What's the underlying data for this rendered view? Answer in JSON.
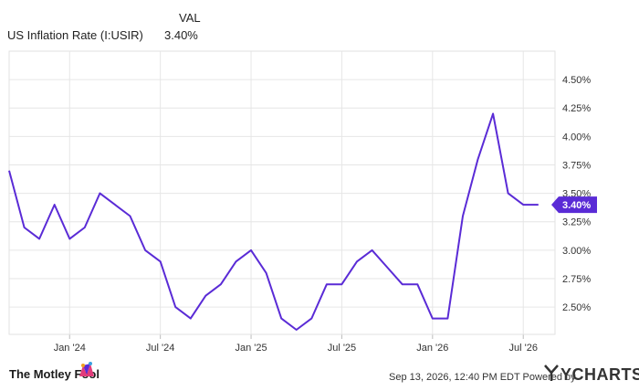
{
  "legend": {
    "value_header": "VAL",
    "series_name": "US Inflation Rate (I:USIR)",
    "series_value": "3.40%"
  },
  "chart_data": {
    "type": "line",
    "series": [
      {
        "name": "US Inflation Rate (I:USIR)",
        "color": "#5a2bd6",
        "x": [
          "2023-09",
          "2023-10",
          "2023-11",
          "2023-12",
          "2024-01",
          "2024-02",
          "2024-03",
          "2024-04",
          "2024-05",
          "2024-06",
          "2024-07",
          "2024-08",
          "2024-09",
          "2024-10",
          "2024-11",
          "2024-12",
          "2025-01",
          "2025-02",
          "2025-03",
          "2025-04",
          "2025-05",
          "2025-06",
          "2025-07",
          "2025-08",
          "2025-09",
          "2025-10",
          "2025-11",
          "2025-12",
          "2026-01",
          "2026-02",
          "2026-03",
          "2026-04",
          "2026-05",
          "2026-06",
          "2026-07",
          "2026-08"
        ],
        "values": [
          3.7,
          3.2,
          3.1,
          3.4,
          3.1,
          3.2,
          3.5,
          3.4,
          3.3,
          3.0,
          2.9,
          2.5,
          2.4,
          2.6,
          2.7,
          2.9,
          3.0,
          2.8,
          2.4,
          2.3,
          2.4,
          2.7,
          2.7,
          2.9,
          3.0,
          2.85,
          2.7,
          2.7,
          2.4,
          2.4,
          3.3,
          3.8,
          4.2,
          3.5,
          3.4,
          3.4
        ]
      }
    ],
    "last_value_label": "3.40%",
    "x_tick_labels": [
      "Jan '24",
      "Jul '24",
      "Jan '25",
      "Jul '25",
      "Jan '26",
      "Jul '26"
    ],
    "y_tick_labels": [
      "2.50%",
      "2.75%",
      "3.00%",
      "3.25%",
      "3.50%",
      "3.75%",
      "4.00%",
      "4.25%",
      "4.50%"
    ],
    "y_ticks": [
      2.5,
      2.75,
      3.0,
      3.25,
      3.5,
      3.75,
      4.0,
      4.25,
      4.5
    ],
    "ylim": [
      2.26,
      4.75
    ],
    "grid": true,
    "legend_position": "top-left"
  },
  "footer": {
    "brand": "The Motley Fool",
    "timestamp": "Sep 13, 2026, 12:40 PM EDT  Powered by",
    "ycharts": "YCHARTS"
  }
}
